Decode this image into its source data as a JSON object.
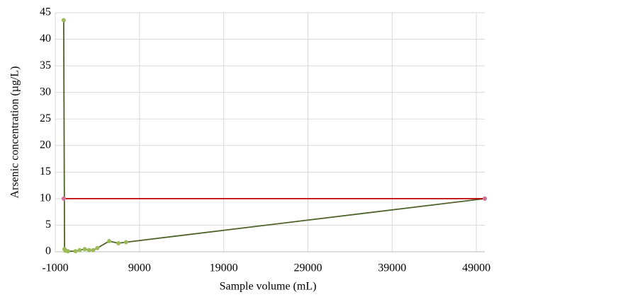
{
  "chart_data": {
    "type": "line",
    "x_label": "Sample volume (mL)",
    "y_label": "Arsenic concentration (µg/L)",
    "xlim": [
      -1000,
      50000
    ],
    "xticks": [
      -1000,
      9000,
      19000,
      29000,
      39000,
      49000
    ],
    "ylim": [
      0,
      45
    ],
    "yticks": [
      0,
      5,
      10,
      15,
      20,
      25,
      30,
      35,
      40,
      45
    ],
    "grid": true,
    "series": [
      {
        "color": "#4f6228",
        "marker_color": "#9bbb59",
        "x": [
          0,
          100,
          200,
          500,
          1400,
          1900,
          2500,
          3000,
          3500,
          4000,
          5400,
          6500,
          7400,
          50000
        ],
        "values": [
          43.6,
          0.5,
          0.2,
          0.1,
          0.1,
          0.3,
          0.5,
          0.3,
          0.3,
          0.7,
          2.0,
          1.6,
          1.8,
          10
        ]
      },
      {
        "color": "#c00000",
        "marker_color": "#d36f9b",
        "x": [
          0,
          50000
        ],
        "values": [
          10,
          10
        ]
      }
    ]
  }
}
